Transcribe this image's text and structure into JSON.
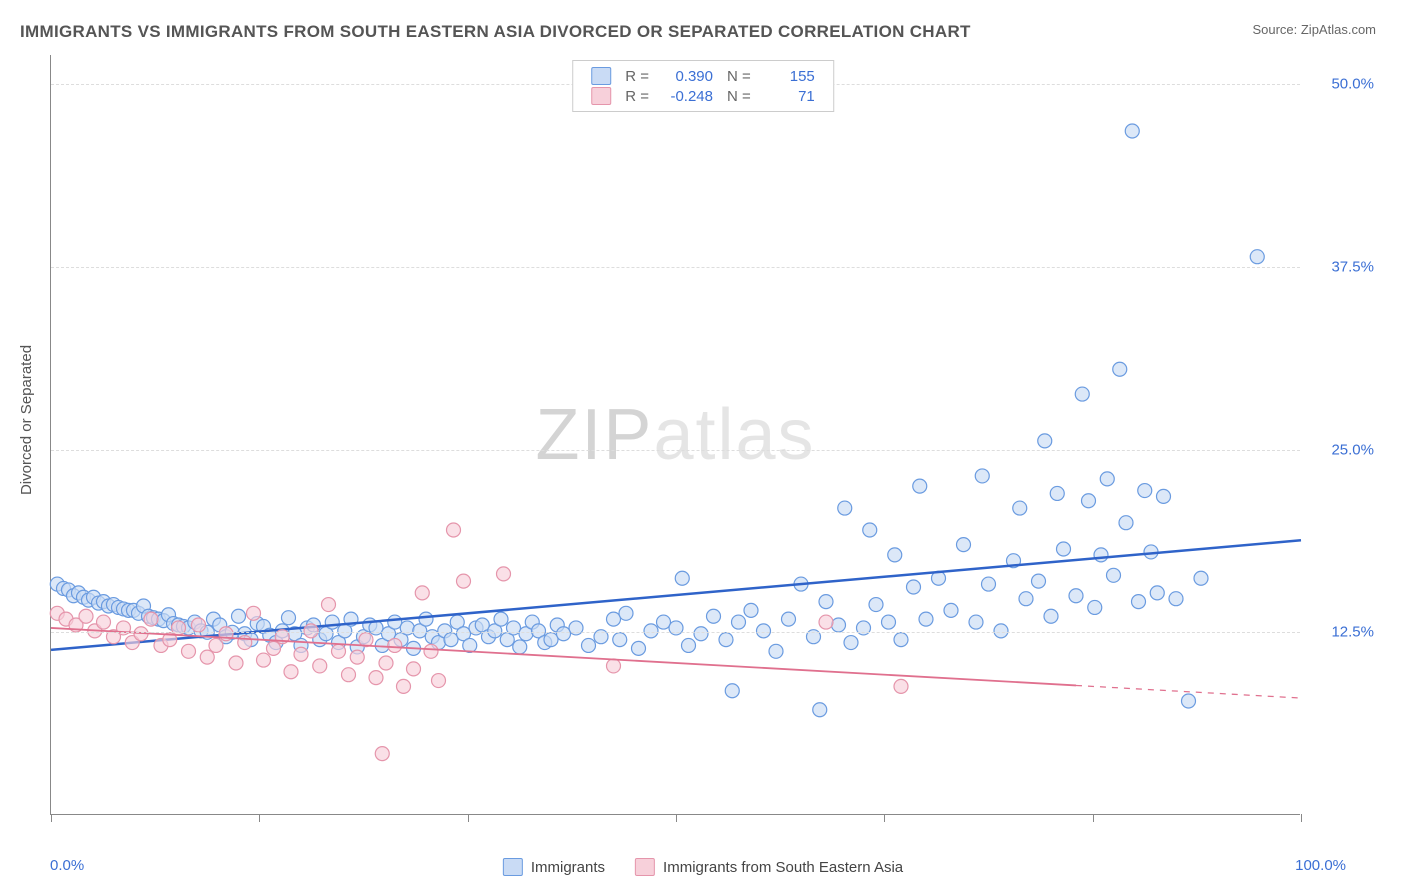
{
  "title": "IMMIGRANTS VS IMMIGRANTS FROM SOUTH EASTERN ASIA DIVORCED OR SEPARATED CORRELATION CHART",
  "source": "Source: ZipAtlas.com",
  "ylabel": "Divorced or Separated",
  "watermark_a": "ZIP",
  "watermark_b": "atlas",
  "chart": {
    "type": "scatter",
    "xlim": [
      0,
      100
    ],
    "ylim": [
      0,
      52
    ],
    "xtick_positions": [
      0,
      16.67,
      33.33,
      50,
      66.67,
      83.33,
      100
    ],
    "x_axis_label_left": "0.0%",
    "x_axis_label_right": "100.0%",
    "ytick_positions": [
      12.5,
      25.0,
      37.5,
      50.0
    ],
    "ytick_labels": [
      "12.5%",
      "25.0%",
      "37.5%",
      "50.0%"
    ],
    "grid_color": "#dddddd",
    "background": "#ffffff",
    "marker_radius": 7,
    "marker_stroke_width": 1.2,
    "series": [
      {
        "name": "Immigrants",
        "fill": "#c9dbf5",
        "stroke": "#6a9be0",
        "fill_opacity": 0.65,
        "R": "0.390",
        "N": "155",
        "trend": {
          "x1": 0,
          "y1": 11.3,
          "x2": 100,
          "y2": 18.8,
          "color": "#2f63c9",
          "width": 2.5,
          "solid_to_x": 100
        },
        "points": [
          [
            0.5,
            15.8
          ],
          [
            1,
            15.5
          ],
          [
            1.4,
            15.4
          ],
          [
            1.8,
            15.0
          ],
          [
            2.2,
            15.2
          ],
          [
            2.6,
            14.9
          ],
          [
            3,
            14.7
          ],
          [
            3.4,
            14.9
          ],
          [
            3.8,
            14.5
          ],
          [
            4.2,
            14.6
          ],
          [
            4.6,
            14.3
          ],
          [
            5,
            14.4
          ],
          [
            5.4,
            14.2
          ],
          [
            5.8,
            14.1
          ],
          [
            6.2,
            14.0
          ],
          [
            6.6,
            14.0
          ],
          [
            7,
            13.8
          ],
          [
            7.4,
            14.3
          ],
          [
            7.8,
            13.6
          ],
          [
            8.2,
            13.5
          ],
          [
            8.6,
            13.4
          ],
          [
            9,
            13.3
          ],
          [
            9.4,
            13.7
          ],
          [
            9.8,
            13.1
          ],
          [
            10.2,
            13.0
          ],
          [
            10.6,
            12.9
          ],
          [
            11,
            12.8
          ],
          [
            11.5,
            13.2
          ],
          [
            12,
            12.6
          ],
          [
            12.5,
            12.5
          ],
          [
            13,
            13.4
          ],
          [
            13.5,
            13.0
          ],
          [
            14,
            12.2
          ],
          [
            14.5,
            12.5
          ],
          [
            15,
            13.6
          ],
          [
            15.5,
            12.4
          ],
          [
            16,
            12.0
          ],
          [
            16.5,
            13.1
          ],
          [
            17,
            12.9
          ],
          [
            17.5,
            12.3
          ],
          [
            18,
            11.8
          ],
          [
            18.5,
            12.6
          ],
          [
            19,
            13.5
          ],
          [
            19.5,
            12.4
          ],
          [
            20,
            11.6
          ],
          [
            20.5,
            12.8
          ],
          [
            21,
            13.0
          ],
          [
            21.5,
            12.0
          ],
          [
            22,
            12.4
          ],
          [
            22.5,
            13.2
          ],
          [
            23,
            11.8
          ],
          [
            23.5,
            12.6
          ],
          [
            24,
            13.4
          ],
          [
            24.5,
            11.5
          ],
          [
            25,
            12.2
          ],
          [
            25.5,
            13.0
          ],
          [
            26,
            12.8
          ],
          [
            26.5,
            11.6
          ],
          [
            27,
            12.4
          ],
          [
            27.5,
            13.2
          ],
          [
            28,
            12.0
          ],
          [
            28.5,
            12.8
          ],
          [
            29,
            11.4
          ],
          [
            29.5,
            12.6
          ],
          [
            30,
            13.4
          ],
          [
            30.5,
            12.2
          ],
          [
            31,
            11.8
          ],
          [
            31.5,
            12.6
          ],
          [
            32,
            12.0
          ],
          [
            32.5,
            13.2
          ],
          [
            33,
            12.4
          ],
          [
            33.5,
            11.6
          ],
          [
            34,
            12.8
          ],
          [
            34.5,
            13.0
          ],
          [
            35,
            12.2
          ],
          [
            35.5,
            12.6
          ],
          [
            36,
            13.4
          ],
          [
            36.5,
            12.0
          ],
          [
            37,
            12.8
          ],
          [
            37.5,
            11.5
          ],
          [
            38,
            12.4
          ],
          [
            38.5,
            13.2
          ],
          [
            39,
            12.6
          ],
          [
            39.5,
            11.8
          ],
          [
            40,
            12.0
          ],
          [
            40.5,
            13.0
          ],
          [
            41,
            12.4
          ],
          [
            42,
            12.8
          ],
          [
            43,
            11.6
          ],
          [
            44,
            12.2
          ],
          [
            45,
            13.4
          ],
          [
            45.5,
            12.0
          ],
          [
            46,
            13.8
          ],
          [
            47,
            11.4
          ],
          [
            48,
            12.6
          ],
          [
            49,
            13.2
          ],
          [
            50,
            12.8
          ],
          [
            50.5,
            16.2
          ],
          [
            51,
            11.6
          ],
          [
            52,
            12.4
          ],
          [
            53,
            13.6
          ],
          [
            54,
            12.0
          ],
          [
            54.5,
            8.5
          ],
          [
            55,
            13.2
          ],
          [
            56,
            14.0
          ],
          [
            57,
            12.6
          ],
          [
            58,
            11.2
          ],
          [
            59,
            13.4
          ],
          [
            60,
            15.8
          ],
          [
            61,
            12.2
          ],
          [
            61.5,
            7.2
          ],
          [
            62,
            14.6
          ],
          [
            63,
            13.0
          ],
          [
            63.5,
            21.0
          ],
          [
            64,
            11.8
          ],
          [
            65,
            12.8
          ],
          [
            65.5,
            19.5
          ],
          [
            66,
            14.4
          ],
          [
            67,
            13.2
          ],
          [
            67.5,
            17.8
          ],
          [
            68,
            12.0
          ],
          [
            69,
            15.6
          ],
          [
            69.5,
            22.5
          ],
          [
            70,
            13.4
          ],
          [
            71,
            16.2
          ],
          [
            72,
            14.0
          ],
          [
            73,
            18.5
          ],
          [
            74,
            13.2
          ],
          [
            74.5,
            23.2
          ],
          [
            75,
            15.8
          ],
          [
            76,
            12.6
          ],
          [
            77,
            17.4
          ],
          [
            77.5,
            21.0
          ],
          [
            78,
            14.8
          ],
          [
            79,
            16.0
          ],
          [
            79.5,
            25.6
          ],
          [
            80,
            13.6
          ],
          [
            80.5,
            22.0
          ],
          [
            81,
            18.2
          ],
          [
            82,
            15.0
          ],
          [
            82.5,
            28.8
          ],
          [
            83,
            21.5
          ],
          [
            83.5,
            14.2
          ],
          [
            84,
            17.8
          ],
          [
            84.5,
            23.0
          ],
          [
            85,
            16.4
          ],
          [
            85.5,
            30.5
          ],
          [
            86,
            20.0
          ],
          [
            86.5,
            46.8
          ],
          [
            87,
            14.6
          ],
          [
            87.5,
            22.2
          ],
          [
            88,
            18.0
          ],
          [
            88.5,
            15.2
          ],
          [
            89,
            21.8
          ],
          [
            90,
            14.8
          ],
          [
            91,
            7.8
          ],
          [
            92,
            16.2
          ],
          [
            96.5,
            38.2
          ]
        ]
      },
      {
        "name": "Immigrants from South Eastern Asia",
        "fill": "#f7d0da",
        "stroke": "#e595ab",
        "fill_opacity": 0.65,
        "R": "-0.248",
        "N": "71",
        "trend": {
          "x1": 0,
          "y1": 12.8,
          "x2": 100,
          "y2": 8.0,
          "color": "#e0708e",
          "width": 1.8,
          "solid_to_x": 82
        },
        "points": [
          [
            0.5,
            13.8
          ],
          [
            1.2,
            13.4
          ],
          [
            2,
            13.0
          ],
          [
            2.8,
            13.6
          ],
          [
            3.5,
            12.6
          ],
          [
            4.2,
            13.2
          ],
          [
            5,
            12.2
          ],
          [
            5.8,
            12.8
          ],
          [
            6.5,
            11.8
          ],
          [
            7.2,
            12.4
          ],
          [
            8,
            13.4
          ],
          [
            8.8,
            11.6
          ],
          [
            9.5,
            12.0
          ],
          [
            10.2,
            12.8
          ],
          [
            11,
            11.2
          ],
          [
            11.8,
            13.0
          ],
          [
            12.5,
            10.8
          ],
          [
            13.2,
            11.6
          ],
          [
            14,
            12.4
          ],
          [
            14.8,
            10.4
          ],
          [
            15.5,
            11.8
          ],
          [
            16.2,
            13.8
          ],
          [
            17,
            10.6
          ],
          [
            17.8,
            11.4
          ],
          [
            18.5,
            12.2
          ],
          [
            19.2,
            9.8
          ],
          [
            20,
            11.0
          ],
          [
            20.8,
            12.6
          ],
          [
            21.5,
            10.2
          ],
          [
            22.2,
            14.4
          ],
          [
            23,
            11.2
          ],
          [
            23.8,
            9.6
          ],
          [
            24.5,
            10.8
          ],
          [
            25.2,
            12.0
          ],
          [
            26,
            9.4
          ],
          [
            26.8,
            10.4
          ],
          [
            27.5,
            11.6
          ],
          [
            28.2,
            8.8
          ],
          [
            29,
            10.0
          ],
          [
            29.7,
            15.2
          ],
          [
            30.4,
            11.2
          ],
          [
            31,
            9.2
          ],
          [
            32.2,
            19.5
          ],
          [
            33,
            16.0
          ],
          [
            36.2,
            16.5
          ],
          [
            26.5,
            4.2
          ],
          [
            45,
            10.2
          ],
          [
            62,
            13.2
          ],
          [
            68,
            8.8
          ]
        ]
      }
    ]
  },
  "bottom_legend": [
    {
      "label": "Immigrants",
      "fill": "#c9dbf5",
      "stroke": "#6a9be0"
    },
    {
      "label": "Immigrants from South Eastern Asia",
      "fill": "#f7d0da",
      "stroke": "#e595ab"
    }
  ]
}
